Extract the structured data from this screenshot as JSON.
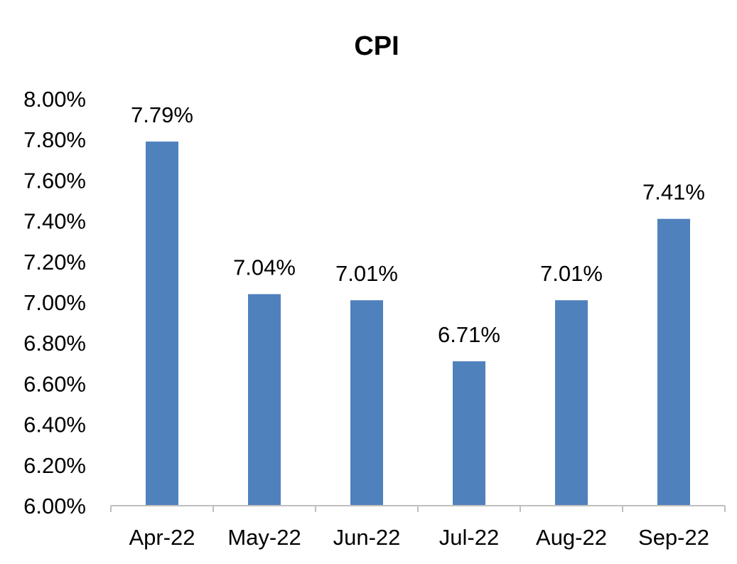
{
  "chart_data": {
    "type": "bar",
    "title": "CPI",
    "xlabel": "",
    "ylabel": "",
    "categories": [
      "Apr-22",
      "May-22",
      "Jun-22",
      "Jul-22",
      "Aug-22",
      "Sep-22"
    ],
    "values": [
      7.79,
      7.04,
      7.01,
      6.71,
      7.01,
      7.41
    ],
    "data_labels": [
      "7.79%",
      "7.04%",
      "7.01%",
      "6.71%",
      "7.01%",
      "7.41%"
    ],
    "ylim": [
      6.0,
      8.0
    ],
    "y_ticks": [
      6.0,
      6.2,
      6.4,
      6.6,
      6.8,
      7.0,
      7.2,
      7.4,
      7.6,
      7.8,
      8.0
    ],
    "y_tick_labels": [
      "6.00%",
      "6.20%",
      "6.40%",
      "6.60%",
      "6.80%",
      "7.00%",
      "7.20%",
      "7.40%",
      "7.60%",
      "7.80%",
      "8.00%"
    ],
    "grid": false,
    "legend": "none",
    "bar_color": "#4f81bd",
    "axis_color": "#bfbfbf",
    "text_color": "#000000"
  }
}
